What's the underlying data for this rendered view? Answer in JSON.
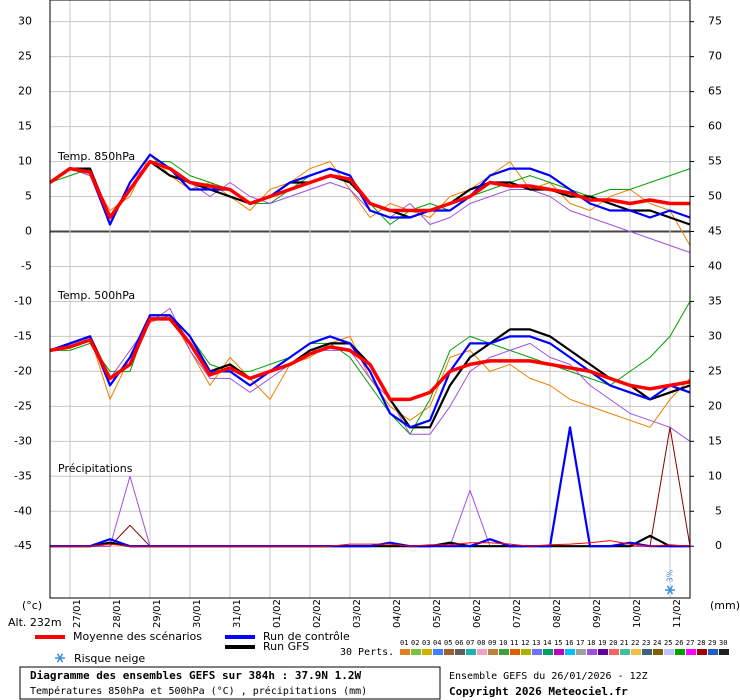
{
  "chart_data": {
    "type": "line",
    "x_label": "(°c)",
    "y2_label": "(mm)",
    "altitude": "Alt. 232m",
    "xlim": [
      0,
      384
    ],
    "xticks": [
      {
        "value": 12,
        "label": "27/01"
      },
      {
        "value": 36,
        "label": "28/01"
      },
      {
        "value": 60,
        "label": "29/01"
      },
      {
        "value": 84,
        "label": "30/01"
      },
      {
        "value": 108,
        "label": "31/01"
      },
      {
        "value": 132,
        "label": "01/02"
      },
      {
        "value": 156,
        "label": "02/02"
      },
      {
        "value": 180,
        "label": "03/02"
      },
      {
        "value": 204,
        "label": "04/02"
      },
      {
        "value": 228,
        "label": "05/02"
      },
      {
        "value": 252,
        "label": "06/02"
      },
      {
        "value": 276,
        "label": "07/02"
      },
      {
        "value": 300,
        "label": "08/02"
      },
      {
        "value": 324,
        "label": "09/02"
      },
      {
        "value": 348,
        "label": "10/02"
      },
      {
        "value": 372,
        "label": "11/02"
      }
    ],
    "ylim": [
      -52.4,
      33.1
    ],
    "yticks": [
      30,
      25,
      20,
      15,
      10,
      5,
      0,
      -5,
      -10,
      -15,
      -20,
      -25,
      -30,
      -35,
      -40,
      -45
    ],
    "y2lim": [
      -7.4,
      78.1
    ],
    "y2ticks": [
      75,
      70,
      65,
      60,
      55,
      50,
      45,
      40,
      35,
      30,
      25,
      20,
      15,
      10,
      5,
      0
    ],
    "grid": true,
    "x": [
      0,
      12,
      24,
      36,
      48,
      60,
      72,
      84,
      96,
      108,
      120,
      132,
      144,
      156,
      168,
      180,
      192,
      204,
      216,
      228,
      240,
      252,
      264,
      276,
      288,
      300,
      312,
      324,
      336,
      348,
      360,
      372,
      384
    ],
    "panels": [
      {
        "title": "Temp. 850hPa",
        "series": [
          {
            "color": "#f08000",
            "values": [
              7,
              9,
              8,
              3,
              5,
              11,
              8,
              6,
              7,
              5,
              3,
              6,
              7,
              9,
              10,
              6,
              2,
              4,
              3,
              2,
              5,
              6,
              8,
              10,
              6,
              7,
              4,
              3,
              5,
              6,
              4,
              3,
              -2
            ]
          },
          {
            "color": "#00a000",
            "values": [
              7,
              8,
              9,
              2,
              6,
              10,
              10,
              8,
              7,
              6,
              4,
              4,
              6,
              8,
              9,
              8,
              4,
              1,
              3,
              4,
              3,
              5,
              6,
              7,
              8,
              7,
              6,
              5,
              6,
              6,
              7,
              8,
              9
            ]
          },
          {
            "color": "#a050e0",
            "values": [
              7,
              9,
              8,
              1,
              7,
              10,
              9,
              7,
              5,
              7,
              5,
              4,
              5,
              6,
              7,
              6,
              3,
              2,
              4,
              1,
              2,
              4,
              5,
              6,
              6,
              5,
              3,
              2,
              1,
              0,
              -1,
              -2,
              -3
            ]
          },
          {
            "name": "Run GFS",
            "color": "#000000",
            "values": [
              7,
              9,
              9,
              2,
              6,
              10,
              8,
              7,
              6,
              5,
              4,
              5,
              7,
              7,
              8,
              7,
              4,
              3,
              2,
              3,
              4,
              6,
              7,
              7,
              6,
              6,
              5,
              5,
              4,
              3,
              3,
              2,
              1
            ]
          },
          {
            "name": "Run de contrôle",
            "color": "#0000ff",
            "values": [
              7,
              9,
              8.5,
              1,
              7,
              11,
              9,
              6,
              6,
              6,
              4,
              5,
              7,
              8,
              9,
              8,
              3,
              2,
              2,
              3,
              3,
              5,
              8,
              9,
              9,
              8,
              6,
              4,
              3,
              3,
              2,
              3,
              2
            ]
          },
          {
            "name": "Moyenne des scénarios",
            "color": "#ff0000",
            "values": [
              7,
              9,
              8.5,
              2,
              6,
              10,
              9,
              7,
              6.5,
              6,
              4,
              5,
              6,
              7,
              8,
              7.5,
              4,
              3,
              3,
              3,
              4,
              5,
              7,
              6.5,
              6.5,
              6,
              5.5,
              4.5,
              4.5,
              4,
              4.5,
              4,
              4
            ]
          }
        ]
      },
      {
        "title": "Temp. 500hPa",
        "series": [
          {
            "color": "#f08000",
            "values": [
              -17,
              -16,
              -15,
              -24,
              -18,
              -13,
              -12,
              -17,
              -22,
              -18,
              -21,
              -24,
              -19,
              -18,
              -16,
              -15,
              -21,
              -25,
              -27,
              -25,
              -18,
              -17,
              -20,
              -19,
              -21,
              -22,
              -24,
              -25,
              -26,
              -27,
              -28,
              -24,
              -21
            ]
          },
          {
            "color": "#00a000",
            "values": [
              -17,
              -17,
              -16,
              -20,
              -20,
              -12,
              -12,
              -15,
              -19,
              -20,
              -20,
              -19,
              -18,
              -16,
              -16,
              -18,
              -22,
              -26,
              -29,
              -24,
              -17,
              -15,
              -16,
              -17,
              -18,
              -19,
              -20,
              -21,
              -22,
              -20,
              -18,
              -15,
              -10
            ]
          },
          {
            "color": "#a050e0",
            "values": [
              -17,
              -16,
              -15,
              -21,
              -17,
              -13,
              -11,
              -17,
              -21,
              -21,
              -23,
              -21,
              -19,
              -17,
              -17,
              -17,
              -21,
              -24,
              -29,
              -29,
              -25,
              -20,
              -18,
              -17,
              -16,
              -18,
              -19,
              -22,
              -24,
              -26,
              -27,
              -28,
              -30
            ]
          },
          {
            "color": "#000000",
            "values": [
              -17,
              -16,
              -15,
              -21,
              -19,
              -12,
              -12,
              -16,
              -20,
              -19,
              -21,
              -20,
              -19,
              -17,
              -16,
              -16,
              -19,
              -24,
              -28,
              -28,
              -22,
              -18,
              -16,
              -14,
              -14,
              -15,
              -17,
              -19,
              -21,
              -22,
              -24,
              -23,
              -22
            ]
          },
          {
            "color": "#0000ff",
            "values": [
              -17,
              -16,
              -15,
              -22,
              -18,
              -12,
              -12,
              -15,
              -20,
              -20,
              -22,
              -20,
              -18,
              -16,
              -15,
              -16,
              -20,
              -26,
              -28,
              -27,
              -20,
              -16,
              -16,
              -15,
              -15,
              -16,
              -18,
              -20,
              -22,
              -23,
              -24,
              -22,
              -23
            ]
          },
          {
            "color": "#ff0000",
            "values": [
              -17,
              -16.5,
              -15.5,
              -21,
              -19,
              -12.5,
              -12.5,
              -16,
              -20.5,
              -19.5,
              -21,
              -20,
              -19,
              -17.5,
              -16.5,
              -17,
              -19,
              -24,
              -24,
              -23,
              -20,
              -19,
              -18.5,
              -18.5,
              -18.5,
              -19,
              -19.5,
              -20,
              -21,
              -22,
              -22.5,
              -22,
              -21.5
            ]
          }
        ]
      },
      {
        "title": "Précipitations",
        "series": [
          {
            "axis": "y2",
            "color": "#800000",
            "values": [
              0,
              0,
              0,
              0,
              3,
              0,
              0,
              0,
              0,
              0,
              0,
              0,
              0,
              0,
              0,
              0,
              0,
              0,
              0,
              0,
              0,
              0,
              0,
              0,
              0,
              0,
              0,
              0,
              0,
              0,
              0,
              17,
              0
            ]
          },
          {
            "axis": "y2",
            "color": "#a050e0",
            "values": [
              0,
              0,
              0,
              0,
              10,
              0,
              0,
              0,
              0,
              0,
              0,
              0,
              0,
              0,
              0,
              0,
              0,
              0,
              0,
              0,
              0,
              8,
              0,
              0,
              0,
              0,
              0,
              0,
              0,
              0,
              0,
              0,
              0
            ]
          },
          {
            "axis": "y2",
            "color": "#000000",
            "values": [
              0,
              0,
              0,
              0.5,
              0,
              0,
              0,
              0,
              0,
              0,
              0,
              0,
              0,
              0,
              0,
              0,
              0,
              0,
              0,
              0,
              0.5,
              0,
              0,
              0,
              0,
              0,
              0,
              0,
              0,
              0,
              1.5,
              0,
              0
            ]
          },
          {
            "axis": "y2",
            "color": "#0000ff",
            "values": [
              0,
              0,
              0,
              1,
              0,
              0,
              0,
              0,
              0,
              0,
              0,
              0,
              0,
              0,
              0,
              0,
              0,
              0.5,
              0,
              0,
              0,
              0,
              1,
              0,
              0,
              0,
              17,
              0,
              0,
              0.5,
              0,
              0,
              0
            ]
          },
          {
            "axis": "y2",
            "color": "#ff0000",
            "values": [
              0,
              0,
              0,
              0.3,
              0,
              0,
              0,
              0,
              0,
              0,
              0,
              0,
              0,
              0,
              0,
              0.3,
              0.3,
              0.3,
              0,
              0.2,
              0.2,
              0.5,
              0.5,
              0.3,
              0,
              0.2,
              0.3,
              0.5,
              0.8,
              0.3,
              0,
              0.2,
              0
            ]
          }
        ]
      }
    ],
    "snow_annotation": {
      "x": 372,
      "label": "3%"
    }
  },
  "legend": {
    "snow": "Risque neige",
    "perts_label": "30 Perts.",
    "perturbations": [
      {
        "code": "01",
        "color": "#e08020"
      },
      {
        "code": "02",
        "color": "#80c040"
      },
      {
        "code": "03",
        "color": "#d0b000"
      },
      {
        "code": "04",
        "color": "#4080ff"
      },
      {
        "code": "05",
        "color": "#a06030"
      },
      {
        "code": "06",
        "color": "#606060"
      },
      {
        "code": "07",
        "color": "#20b0b0"
      },
      {
        "code": "08",
        "color": "#f0a0c0"
      },
      {
        "code": "09",
        "color": "#c08040"
      },
      {
        "code": "10",
        "color": "#40a040"
      },
      {
        "code": "11",
        "color": "#e06000"
      },
      {
        "code": "12",
        "color": "#b0b000"
      },
      {
        "code": "13",
        "color": "#7070ff"
      },
      {
        "code": "14",
        "color": "#00a060"
      },
      {
        "code": "15",
        "color": "#c000c0"
      },
      {
        "code": "16",
        "color": "#00c0ff"
      },
      {
        "code": "17",
        "color": "#a0a0a0"
      },
      {
        "code": "18",
        "color": "#a050e0"
      },
      {
        "code": "19",
        "color": "#6000a0"
      },
      {
        "code": "20",
        "color": "#ff6060"
      },
      {
        "code": "21",
        "color": "#40c0a0"
      },
      {
        "code": "22",
        "color": "#f0c040"
      },
      {
        "code": "23",
        "color": "#406080"
      },
      {
        "code": "24",
        "color": "#806000"
      },
      {
        "code": "25",
        "color": "#c0c0ff"
      },
      {
        "code": "26",
        "color": "#00a000"
      },
      {
        "code": "27",
        "color": "#ff00ff"
      },
      {
        "code": "28",
        "color": "#a00000"
      },
      {
        "code": "29",
        "color": "#2060c0"
      },
      {
        "code": "30",
        "color": "#202020"
      }
    ]
  },
  "footer": {
    "title": "Diagramme des ensembles GEFS sur 384h : 37.9N 1.2W",
    "subtitle": "Températures 850hPa et 500hPa (°C) , précipitations (mm)",
    "run": "Ensemble GEFS du 26/01/2026 - 12Z",
    "copyright": "Copyright 2026 Meteociel.fr"
  }
}
